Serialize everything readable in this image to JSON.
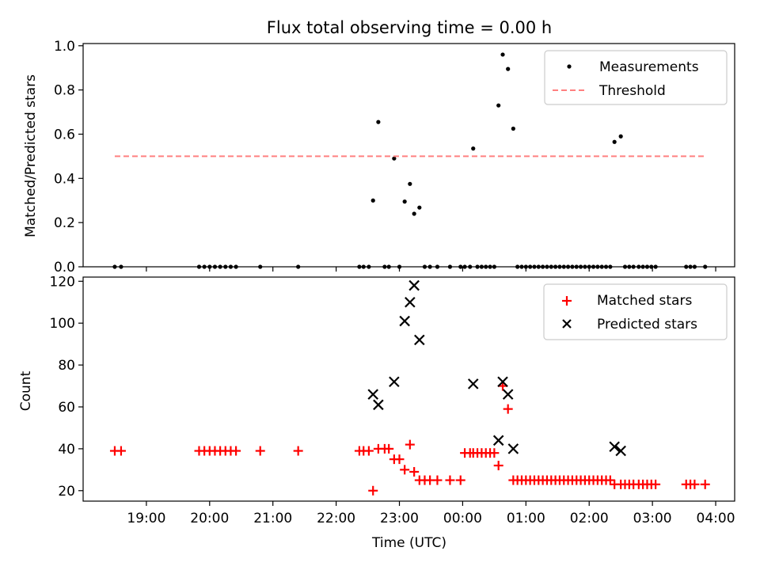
{
  "figure": {
    "title": "Flux total observing time = 0.00 h"
  },
  "chart_data": [
    {
      "type": "scatter",
      "title": "Flux total observing time = 0.00 h",
      "xlabel": "",
      "ylabel": "Matched/Predicted stars",
      "xlim": [
        18.0,
        4.3
      ],
      "ylim": [
        0.0,
        1.01
      ],
      "yticks": [
        0.0,
        0.2,
        0.4,
        0.6,
        0.8,
        1.0
      ],
      "ytick_labels": [
        "0.0",
        "0.2",
        "0.4",
        "0.6",
        "0.8",
        "1.0"
      ],
      "grid": false,
      "legend_position": "top-right",
      "series": [
        {
          "name": "Measurements",
          "marker": "dot",
          "color": "#000000",
          "x": [
            "18:30",
            "18:36",
            "19:50",
            "19:55",
            "20:00",
            "20:05",
            "20:10",
            "20:15",
            "20:20",
            "20:25",
            "20:48",
            "21:24",
            "22:22",
            "22:26",
            "22:31",
            "22:35",
            "22:40",
            "22:46",
            "22:50",
            "22:55",
            "23:00",
            "23:05",
            "23:10",
            "23:14",
            "23:19",
            "23:24",
            "23:29",
            "23:36",
            "23:48",
            "23:58",
            "24:02",
            "24:07",
            "24:10",
            "24:14",
            "24:18",
            "24:22",
            "24:26",
            "24:30",
            "24:34",
            "24:38",
            "24:43",
            "24:48",
            "24:52",
            "24:56",
            "25:00",
            "25:04",
            "25:08",
            "25:12",
            "25:16",
            "25:20",
            "25:24",
            "25:28",
            "25:32",
            "25:36",
            "25:40",
            "25:44",
            "25:48",
            "25:52",
            "25:56",
            "26:00",
            "26:04",
            "26:08",
            "26:12",
            "26:16",
            "26:20",
            "26:24",
            "26:30",
            "26:34",
            "26:38",
            "26:42",
            "26:47",
            "26:51",
            "26:55",
            "26:59",
            "27:03",
            "27:32",
            "27:36",
            "27:40",
            "27:50"
          ],
          "y": [
            0,
            0,
            0,
            0,
            0,
            0,
            0,
            0,
            0,
            0,
            0,
            0,
            0,
            0,
            0,
            0.3,
            0.655,
            0,
            0,
            0.49,
            0,
            0.295,
            0.375,
            0.24,
            0.268,
            0,
            0,
            0,
            0,
            0,
            0,
            0,
            0.535,
            0,
            0,
            0,
            0,
            0,
            0.73,
            0.96,
            0.895,
            0.625,
            0,
            0,
            0,
            0,
            0,
            0,
            0,
            0,
            0,
            0,
            0,
            0,
            0,
            0,
            0,
            0,
            0,
            0,
            0,
            0,
            0,
            0,
            0,
            0.565,
            0.59,
            0,
            0,
            0,
            0,
            0,
            0,
            0,
            0,
            0,
            0,
            0,
            0
          ]
        },
        {
          "name": "Threshold",
          "style": "dashed",
          "color": "#ff8080",
          "x": [
            "18:30",
            "27:50"
          ],
          "y": [
            0.5,
            0.5
          ]
        }
      ]
    },
    {
      "type": "scatter",
      "xlabel": "Time (UTC)",
      "ylabel": "Count",
      "xlim": [
        18.0,
        4.3
      ],
      "ylim": [
        15,
        122
      ],
      "yticks": [
        20,
        40,
        60,
        80,
        100,
        120
      ],
      "ytick_labels": [
        "20",
        "40",
        "60",
        "80",
        "100",
        "120"
      ],
      "xticks": [
        19,
        20,
        21,
        22,
        23,
        24,
        25,
        26,
        27,
        28
      ],
      "xtick_labels": [
        "19:00",
        "20:00",
        "21:00",
        "22:00",
        "23:00",
        "00:00",
        "01:00",
        "02:00",
        "03:00",
        "04:00"
      ],
      "grid": false,
      "legend_position": "top-right",
      "series": [
        {
          "name": "Matched stars",
          "marker": "plus",
          "color": "#ff0000",
          "x": [
            "18:30",
            "18:36",
            "19:50",
            "19:55",
            "20:00",
            "20:05",
            "20:10",
            "20:15",
            "20:20",
            "20:25",
            "20:48",
            "21:24",
            "22:22",
            "22:26",
            "22:31",
            "22:35",
            "22:40",
            "22:46",
            "22:50",
            "22:55",
            "23:00",
            "23:05",
            "23:10",
            "23:14",
            "23:19",
            "23:24",
            "23:29",
            "23:36",
            "23:48",
            "23:58",
            "24:02",
            "24:07",
            "24:10",
            "24:14",
            "24:18",
            "24:22",
            "24:26",
            "24:30",
            "24:34",
            "24:38",
            "24:43",
            "24:48",
            "24:52",
            "24:56",
            "25:00",
            "25:04",
            "25:08",
            "25:12",
            "25:16",
            "25:20",
            "25:24",
            "25:28",
            "25:32",
            "25:36",
            "25:40",
            "25:44",
            "25:48",
            "25:52",
            "25:56",
            "26:00",
            "26:04",
            "26:08",
            "26:12",
            "26:16",
            "26:20",
            "26:24",
            "26:30",
            "26:34",
            "26:38",
            "26:42",
            "26:47",
            "26:51",
            "26:55",
            "26:59",
            "27:03",
            "27:32",
            "27:36",
            "27:40",
            "27:50"
          ],
          "y": [
            39,
            39,
            39,
            39,
            39,
            39,
            39,
            39,
            39,
            39,
            39,
            39,
            39,
            39,
            39,
            20,
            40,
            40,
            40,
            35,
            35,
            30,
            42,
            29,
            25,
            25,
            25,
            25,
            25,
            25,
            38,
            38,
            38,
            38,
            38,
            38,
            38,
            38,
            32,
            70,
            59,
            25,
            25,
            25,
            25,
            25,
            25,
            25,
            25,
            25,
            25,
            25,
            25,
            25,
            25,
            25,
            25,
            25,
            25,
            25,
            25,
            25,
            25,
            25,
            25,
            23,
            23,
            23,
            23,
            23,
            23,
            23,
            23,
            23,
            23,
            23,
            23,
            23,
            23
          ]
        },
        {
          "name": "Predicted stars",
          "marker": "x",
          "color": "#000000",
          "x": [
            "22:35",
            "22:40",
            "22:55",
            "23:05",
            "23:10",
            "23:14",
            "23:19",
            "24:10",
            "24:34",
            "24:38",
            "24:43",
            "24:48",
            "26:24",
            "26:30"
          ],
          "y": [
            66,
            61,
            72,
            101,
            110,
            118,
            92,
            71,
            44,
            72,
            66,
            40,
            41,
            39
          ]
        }
      ]
    }
  ],
  "legends": {
    "top": [
      "Measurements",
      "Threshold"
    ],
    "bottom": [
      "Matched stars",
      "Predicted stars"
    ]
  }
}
